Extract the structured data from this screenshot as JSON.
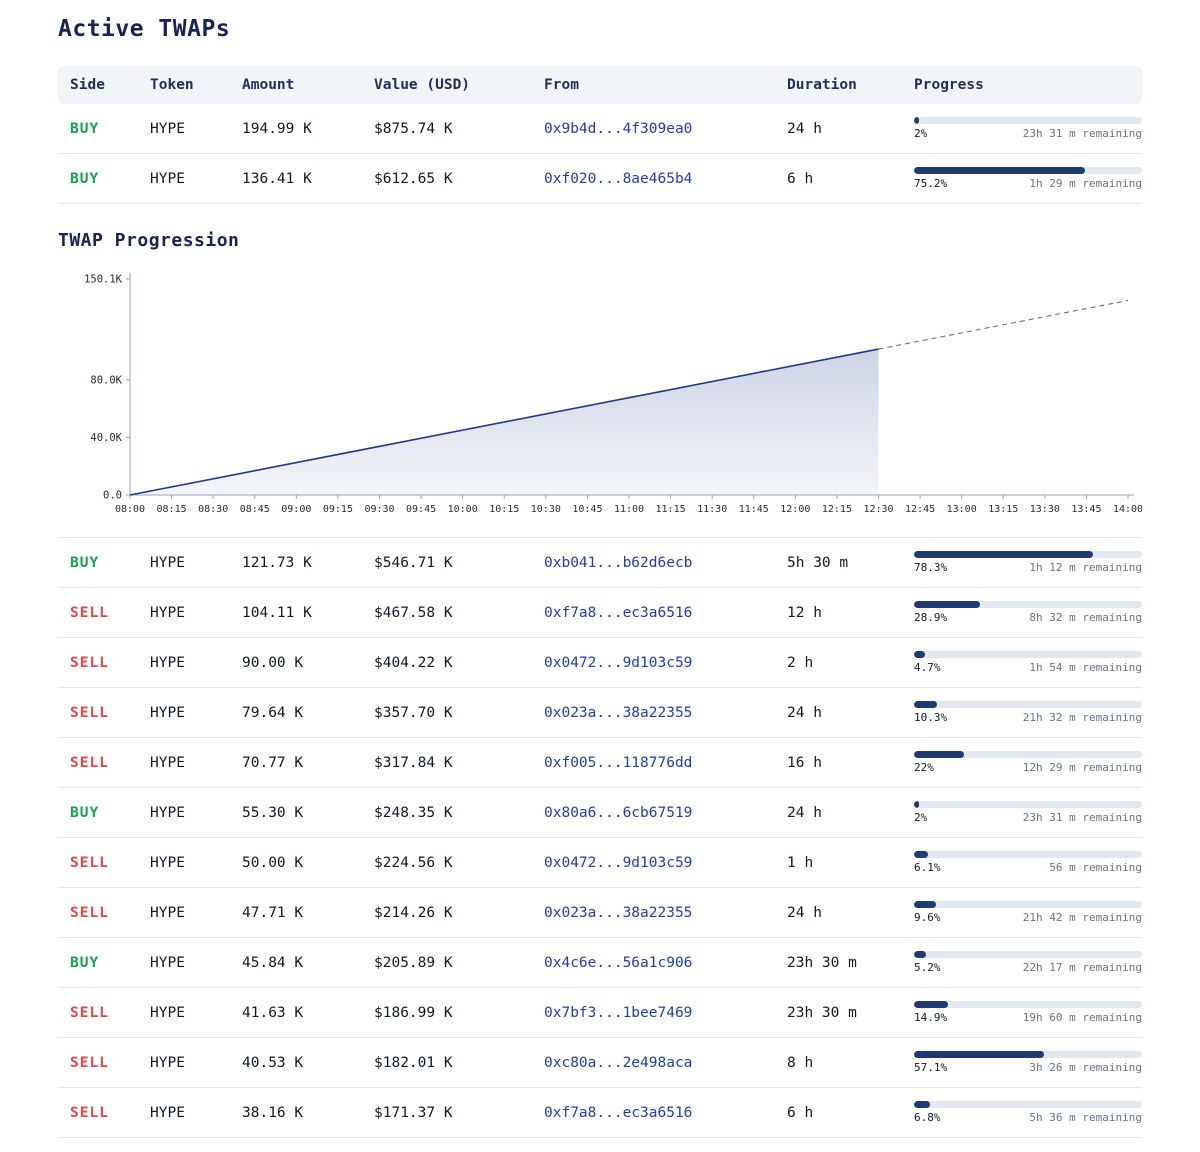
{
  "page": {
    "title": "Active TWAPs",
    "chart_section_title": "TWAP Progression"
  },
  "table": {
    "headers": [
      "Side",
      "Token",
      "Amount",
      "Value (USD)",
      "From",
      "Duration",
      "Progress"
    ],
    "active": [
      {
        "side": "BUY",
        "token": "HYPE",
        "amount": "194.99 K",
        "value": "$875.74 K",
        "from": "0x9b4d...4f309ea0",
        "duration": "24 h",
        "pct": 2,
        "pct_label": "2%",
        "remaining": "23h 31 m remaining"
      },
      {
        "side": "BUY",
        "token": "HYPE",
        "amount": "136.41 K",
        "value": "$612.65 K",
        "from": "0xf020...8ae465b4",
        "duration": "6 h",
        "pct": 75.2,
        "pct_label": "75.2%",
        "remaining": "1h 29 m remaining"
      }
    ],
    "orders": [
      {
        "side": "BUY",
        "token": "HYPE",
        "amount": "121.73 K",
        "value": "$546.71 K",
        "from": "0xb041...b62d6ecb",
        "duration": "5h 30 m",
        "pct": 78.3,
        "pct_label": "78.3%",
        "remaining": "1h 12 m remaining"
      },
      {
        "side": "SELL",
        "token": "HYPE",
        "amount": "104.11 K",
        "value": "$467.58 K",
        "from": "0xf7a8...ec3a6516",
        "duration": "12 h",
        "pct": 28.9,
        "pct_label": "28.9%",
        "remaining": "8h 32 m remaining"
      },
      {
        "side": "SELL",
        "token": "HYPE",
        "amount": "90.00 K",
        "value": "$404.22 K",
        "from": "0x0472...9d103c59",
        "duration": "2 h",
        "pct": 4.7,
        "pct_label": "4.7%",
        "remaining": "1h 54 m remaining"
      },
      {
        "side": "SELL",
        "token": "HYPE",
        "amount": "79.64 K",
        "value": "$357.70 K",
        "from": "0x023a...38a22355",
        "duration": "24 h",
        "pct": 10.3,
        "pct_label": "10.3%",
        "remaining": "21h 32 m remaining"
      },
      {
        "side": "SELL",
        "token": "HYPE",
        "amount": "70.77 K",
        "value": "$317.84 K",
        "from": "0xf005...118776dd",
        "duration": "16 h",
        "pct": 22,
        "pct_label": "22%",
        "remaining": "12h 29 m remaining"
      },
      {
        "side": "BUY",
        "token": "HYPE",
        "amount": "55.30 K",
        "value": "$248.35 K",
        "from": "0x80a6...6cb67519",
        "duration": "24 h",
        "pct": 2,
        "pct_label": "2%",
        "remaining": "23h 31 m remaining"
      },
      {
        "side": "SELL",
        "token": "HYPE",
        "amount": "50.00 K",
        "value": "$224.56 K",
        "from": "0x0472...9d103c59",
        "duration": "1 h",
        "pct": 6.1,
        "pct_label": "6.1%",
        "remaining": "56 m remaining"
      },
      {
        "side": "SELL",
        "token": "HYPE",
        "amount": "47.71 K",
        "value": "$214.26 K",
        "from": "0x023a...38a22355",
        "duration": "24 h",
        "pct": 9.6,
        "pct_label": "9.6%",
        "remaining": "21h 42 m remaining"
      },
      {
        "side": "BUY",
        "token": "HYPE",
        "amount": "45.84 K",
        "value": "$205.89 K",
        "from": "0x4c6e...56a1c906",
        "duration": "23h 30 m",
        "pct": 5.2,
        "pct_label": "5.2%",
        "remaining": "22h 17 m remaining"
      },
      {
        "side": "SELL",
        "token": "HYPE",
        "amount": "41.63 K",
        "value": "$186.99 K",
        "from": "0x7bf3...1bee7469",
        "duration": "23h 30 m",
        "pct": 14.9,
        "pct_label": "14.9%",
        "remaining": "19h 60 m remaining"
      },
      {
        "side": "SELL",
        "token": "HYPE",
        "amount": "40.53 K",
        "value": "$182.01 K",
        "from": "0xc80a...2e498aca",
        "duration": "8 h",
        "pct": 57.1,
        "pct_label": "57.1%",
        "remaining": "3h 26 m remaining"
      },
      {
        "side": "SELL",
        "token": "HYPE",
        "amount": "38.16 K",
        "value": "$171.37 K",
        "from": "0xf7a8...ec3a6516",
        "duration": "6 h",
        "pct": 6.8,
        "pct_label": "6.8%",
        "remaining": "5h 36 m remaining"
      }
    ]
  },
  "chart_data": {
    "type": "area",
    "title": "TWAP Progression",
    "xlabel": "",
    "ylabel": "",
    "ylim": [
      0,
      150.1
    ],
    "y_ticks": [
      {
        "v": 0,
        "label": "0.0"
      },
      {
        "v": 40,
        "label": "40.0K"
      },
      {
        "v": 80,
        "label": "80.0K"
      },
      {
        "v": 150.1,
        "label": "150.1K"
      }
    ],
    "x_ticks": [
      "08:00",
      "08:15",
      "08:30",
      "08:45",
      "09:00",
      "09:15",
      "09:30",
      "09:45",
      "10:00",
      "10:15",
      "10:30",
      "10:45",
      "11:00",
      "11:15",
      "11:30",
      "11:45",
      "12:00",
      "12:15",
      "12:30",
      "12:45",
      "13:00",
      "13:15",
      "13:30",
      "13:45",
      "14:00"
    ],
    "series": [
      {
        "name": "executed",
        "style": "solid-area",
        "points": [
          {
            "x": "08:00",
            "y": 0
          },
          {
            "x": "12:30",
            "y": 101.4
          }
        ]
      },
      {
        "name": "projected",
        "style": "dashed",
        "points": [
          {
            "x": "12:30",
            "y": 101.4
          },
          {
            "x": "14:00",
            "y": 135.2
          }
        ]
      }
    ],
    "colors": {
      "line": "#1e3a8a",
      "projection": "#64748b",
      "fill": "#1e3a8a"
    }
  }
}
